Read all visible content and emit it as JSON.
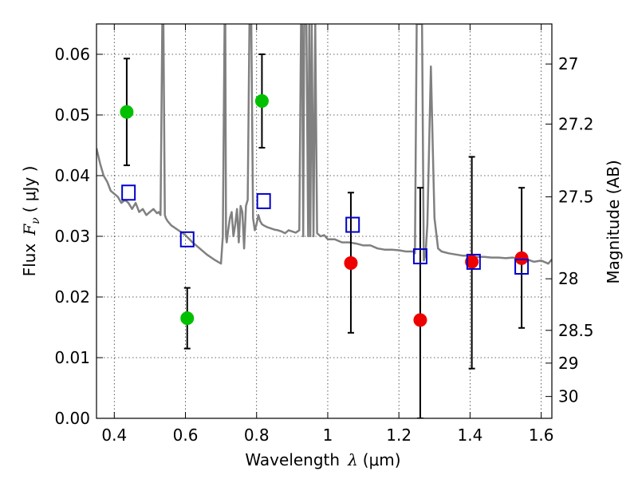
{
  "chart_data": {
    "type": "scatter",
    "xlabel": {
      "prefix": "Wavelength",
      "symbol": "λ",
      "unit": "(μm)"
    },
    "ylabel": {
      "prefix": "Flux",
      "symbol": "F",
      "subscript": "ν",
      "unit": "( μJy )"
    },
    "y2label": "Magnitude (AB)",
    "xlim": [
      0.35,
      1.63
    ],
    "ylim": [
      0.0,
      0.065
    ],
    "grid": true,
    "x_ticks": [
      0.4,
      0.6,
      0.8,
      1.0,
      1.2,
      1.4,
      1.6
    ],
    "x_tick_labels": [
      "0.4",
      "0.6",
      "0.8",
      "1",
      "1.2",
      "1.4",
      "1.6"
    ],
    "y_ticks": [
      0.0,
      0.01,
      0.02,
      0.03,
      0.04,
      0.05,
      0.06
    ],
    "y_tick_labels": [
      "0.00",
      "0.01",
      "0.02",
      "0.03",
      "0.04",
      "0.05",
      "0.06"
    ],
    "y2_ticks": [
      {
        "flux": 0.0584,
        "label": "27"
      },
      {
        "flux": 0.0485,
        "label": "27.2"
      },
      {
        "flux": 0.0365,
        "label": "27.5"
      },
      {
        "flux": 0.023,
        "label": "28"
      },
      {
        "flux": 0.0145,
        "label": "28.5"
      },
      {
        "flux": 0.0091,
        "label": "29"
      },
      {
        "flux": 0.0036,
        "label": "30"
      }
    ],
    "series": [
      {
        "marker": "circle",
        "color": "#00c000",
        "points": [
          {
            "x": 0.435,
            "y": 0.0505,
            "ylow": 0.0417,
            "yhigh": 0.0593
          },
          {
            "x": 0.605,
            "y": 0.0165,
            "ylow": 0.0115,
            "yhigh": 0.0215
          },
          {
            "x": 0.815,
            "y": 0.0523,
            "ylow": 0.0446,
            "yhigh": 0.06
          }
        ]
      },
      {
        "marker": "circle",
        "color": "#ee0000",
        "points": [
          {
            "x": 1.065,
            "y": 0.0256,
            "ylow": 0.0141,
            "yhigh": 0.0372
          },
          {
            "x": 1.26,
            "y": 0.0162,
            "ylow": 0.0,
            "yhigh": 0.038
          },
          {
            "x": 1.405,
            "y": 0.0258,
            "ylow": 0.0082,
            "yhigh": 0.0431
          },
          {
            "x": 1.545,
            "y": 0.0264,
            "ylow": 0.0149,
            "yhigh": 0.038
          }
        ]
      },
      {
        "marker": "square",
        "color": "#0000cc",
        "points": [
          {
            "x": 0.44,
            "y": 0.0372
          },
          {
            "x": 0.605,
            "y": 0.0295
          },
          {
            "x": 0.82,
            "y": 0.0358
          },
          {
            "x": 1.07,
            "y": 0.0319
          },
          {
            "x": 1.26,
            "y": 0.0267
          },
          {
            "x": 1.41,
            "y": 0.0258
          },
          {
            "x": 1.545,
            "y": 0.025
          }
        ]
      },
      {
        "type": "line",
        "color": "#808080",
        "x": [
          0.35,
          0.36,
          0.37,
          0.38,
          0.39,
          0.4,
          0.41,
          0.42,
          0.43,
          0.44,
          0.45,
          0.46,
          0.47,
          0.48,
          0.49,
          0.5,
          0.51,
          0.52,
          0.525,
          0.53,
          0.535,
          0.538,
          0.542,
          0.545,
          0.55,
          0.56,
          0.58,
          0.6,
          0.62,
          0.64,
          0.66,
          0.68,
          0.7,
          0.705,
          0.71,
          0.712,
          0.714,
          0.716,
          0.72,
          0.725,
          0.73,
          0.735,
          0.74,
          0.745,
          0.75,
          0.755,
          0.76,
          0.765,
          0.77,
          0.775,
          0.78,
          0.785,
          0.79,
          0.795,
          0.8,
          0.805,
          0.81,
          0.815,
          0.82,
          0.83,
          0.84,
          0.85,
          0.86,
          0.87,
          0.88,
          0.89,
          0.9,
          0.91,
          0.92,
          0.925,
          0.928,
          0.931,
          0.934,
          0.94,
          0.945,
          0.948,
          0.951,
          0.955,
          0.96,
          0.965,
          0.97,
          0.98,
          0.99,
          1.0,
          1.02,
          1.04,
          1.06,
          1.08,
          1.1,
          1.12,
          1.14,
          1.16,
          1.18,
          1.2,
          1.22,
          1.24,
          1.245,
          1.25,
          1.255,
          1.26,
          1.265,
          1.27,
          1.275,
          1.28,
          1.285,
          1.29,
          1.295,
          1.3,
          1.31,
          1.32,
          1.34,
          1.36,
          1.38,
          1.4,
          1.42,
          1.44,
          1.46,
          1.48,
          1.5,
          1.52,
          1.54,
          1.56,
          1.58,
          1.6,
          1.62,
          1.63
        ],
        "y": [
          0.0445,
          0.042,
          0.04,
          0.039,
          0.0375,
          0.037,
          0.0365,
          0.0355,
          0.036,
          0.0355,
          0.0345,
          0.0355,
          0.034,
          0.0345,
          0.0335,
          0.034,
          0.0345,
          0.0338,
          0.034,
          0.0335,
          0.065,
          0.065,
          0.0335,
          0.033,
          0.0325,
          0.0318,
          0.031,
          0.0302,
          0.029,
          0.028,
          0.027,
          0.0262,
          0.0255,
          0.03,
          0.065,
          0.065,
          0.03,
          0.029,
          0.031,
          0.033,
          0.034,
          0.03,
          0.032,
          0.0345,
          0.029,
          0.035,
          0.034,
          0.028,
          0.035,
          0.036,
          0.065,
          0.065,
          0.033,
          0.031,
          0.032,
          0.0335,
          0.0325,
          0.032,
          0.0318,
          0.0315,
          0.0313,
          0.0311,
          0.031,
          0.0308,
          0.0305,
          0.031,
          0.0308,
          0.0306,
          0.031,
          0.065,
          0.065,
          0.03,
          0.065,
          0.065,
          0.03,
          0.065,
          0.03,
          0.065,
          0.03,
          0.065,
          0.0305,
          0.03,
          0.0302,
          0.0295,
          0.0295,
          0.029,
          0.029,
          0.0288,
          0.0285,
          0.0285,
          0.028,
          0.0278,
          0.0278,
          0.0277,
          0.0275,
          0.0275,
          0.0272,
          0.065,
          0.065,
          0.065,
          0.065,
          0.026,
          0.027,
          0.032,
          0.045,
          0.058,
          0.045,
          0.033,
          0.028,
          0.0275,
          0.0272,
          0.027,
          0.0268,
          0.0268,
          0.0266,
          0.0266,
          0.0265,
          0.0265,
          0.0264,
          0.0265,
          0.0262,
          0.0262,
          0.0258,
          0.026,
          0.0255,
          0.0262
        ]
      }
    ]
  }
}
